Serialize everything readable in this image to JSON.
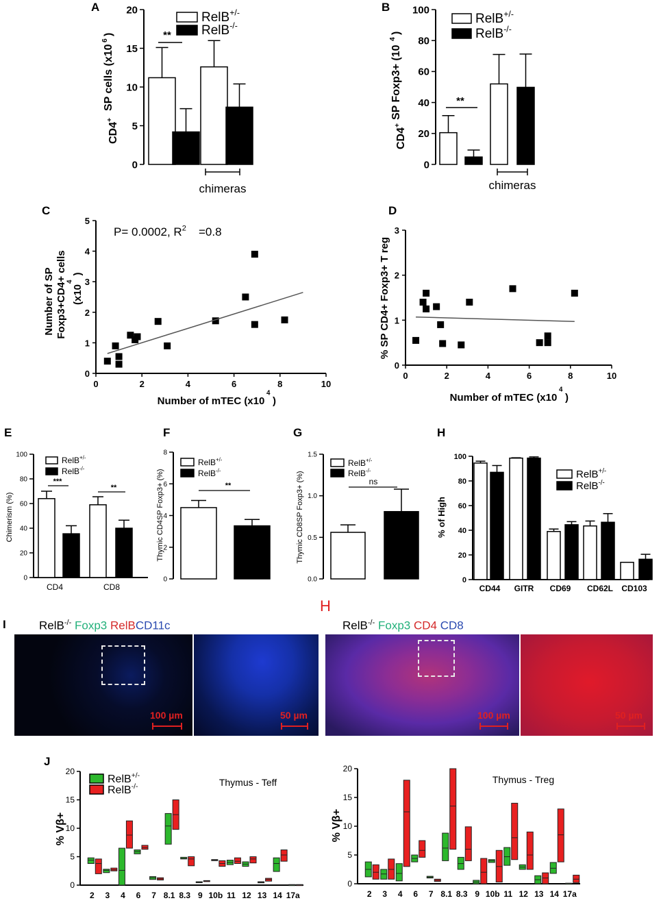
{
  "colors": {
    "teff_green": "#2db82d",
    "teff_red": "#e82020",
    "mono_black": "#000000",
    "mono_white": "#ffffff"
  },
  "panels": {
    "A": {
      "letter": "A"
    },
    "B": {
      "letter": "B"
    },
    "C": {
      "letter": "C"
    },
    "D": {
      "letter": "D"
    },
    "E": {
      "letter": "E"
    },
    "F": {
      "letter": "F"
    },
    "G": {
      "letter": "G"
    },
    "H": {
      "letter": "H"
    },
    "I": {
      "letter": "I"
    },
    "J": {
      "letter": "J"
    }
  },
  "imaging": {
    "left": {
      "genotype": "RelB",
      "sup": "-/-",
      "stains": [
        {
          "text": "Foxp3",
          "color": "#22b07a"
        },
        {
          "text": "RelB",
          "color": "#d42a2a"
        },
        {
          "text": "CD11c",
          "color": "#2a4ab0"
        }
      ],
      "scale_wide": "100 µm",
      "scale_zoom": "50 µm"
    },
    "right": {
      "header_mark": "H",
      "genotype": "RelB",
      "sup": "-/-",
      "stains": [
        {
          "text": "Foxp3",
          "color": "#22b07a"
        },
        {
          "text": "CD4",
          "color": "#d42a2a"
        },
        {
          "text": "CD8",
          "color": "#2a4ab0"
        }
      ],
      "scale_wide": "100 µm",
      "scale_zoom": "50 µm"
    }
  },
  "chart_data": [
    {
      "id": "A",
      "type": "bar",
      "ylabel": "CD4+ SP cells (x10^6)",
      "ylim": [
        0,
        20
      ],
      "yticks": [
        0,
        5,
        10,
        15,
        20
      ],
      "series": [
        {
          "name": "RelB+/-",
          "fill": "white",
          "values": [
            11.2,
            12.6
          ],
          "err": [
            3.9,
            3.4
          ]
        },
        {
          "name": "RelB-/-",
          "fill": "black",
          "values": [
            4.2,
            7.4
          ],
          "err": [
            3.0,
            3.0
          ]
        }
      ],
      "groups": [
        "",
        "chimeras"
      ],
      "annotations": [
        {
          "text": "**",
          "between": [
            0,
            0
          ]
        }
      ],
      "legend": "top-right"
    },
    {
      "id": "B",
      "type": "bar",
      "ylabel": "CD4+ SP Foxp3+ (10^4)",
      "ylim": [
        0,
        100
      ],
      "yticks": [
        0,
        20,
        40,
        60,
        80,
        100
      ],
      "series": [
        {
          "name": "RelB+/-",
          "fill": "white",
          "values": [
            20.5,
            52
          ],
          "err": [
            11,
            19
          ]
        },
        {
          "name": "RelB-/-",
          "fill": "black",
          "values": [
            4.8,
            49.8
          ],
          "err": [
            4.5,
            21.5
          ]
        }
      ],
      "groups": [
        "",
        "chimeras"
      ],
      "annotations": [
        {
          "text": "**"
        }
      ],
      "legend": "top-right"
    },
    {
      "id": "C",
      "type": "scatter",
      "xlabel": "Number of mTEC (x10^4)",
      "ylabel": "Number of SP Foxp3+CD4+ cells (x10^4)",
      "xlim": [
        0,
        10
      ],
      "ylim": [
        0,
        5
      ],
      "xticks": [
        0,
        2,
        4,
        6,
        8,
        10
      ],
      "yticks": [
        0,
        1,
        2,
        3,
        4,
        5
      ],
      "annotation": "P= 0.0002, R2=0.8",
      "points": [
        [
          0.5,
          0.4
        ],
        [
          0.85,
          0.9
        ],
        [
          1.0,
          0.55
        ],
        [
          1.0,
          0.3
        ],
        [
          1.5,
          1.25
        ],
        [
          1.7,
          1.1
        ],
        [
          1.8,
          1.2
        ],
        [
          2.7,
          1.7
        ],
        [
          3.1,
          0.9
        ],
        [
          5.2,
          1.72
        ],
        [
          6.5,
          2.5
        ],
        [
          6.9,
          3.9
        ],
        [
          6.9,
          1.6
        ],
        [
          8.2,
          1.75
        ]
      ],
      "fit": [
        [
          0.5,
          0.65
        ],
        [
          9.0,
          2.65
        ]
      ]
    },
    {
      "id": "D",
      "type": "scatter",
      "xlabel": "Number of mTEC (x10^4)",
      "ylabel": "% SP CD4+ Foxp3+ T reg",
      "xlim": [
        0,
        10
      ],
      "ylim": [
        0,
        3
      ],
      "xticks": [
        0,
        2,
        4,
        6,
        8,
        10
      ],
      "yticks": [
        0,
        1,
        2,
        3
      ],
      "points": [
        [
          0.5,
          0.55
        ],
        [
          0.85,
          1.4
        ],
        [
          1.0,
          1.6
        ],
        [
          1.0,
          1.25
        ],
        [
          1.5,
          1.3
        ],
        [
          1.7,
          0.9
        ],
        [
          1.8,
          0.48
        ],
        [
          2.7,
          0.45
        ],
        [
          3.1,
          1.4
        ],
        [
          5.2,
          1.7
        ],
        [
          6.5,
          0.5
        ],
        [
          6.9,
          0.65
        ],
        [
          6.9,
          0.5
        ],
        [
          8.2,
          1.6
        ]
      ],
      "fit": [
        [
          0.5,
          1.07
        ],
        [
          8.2,
          0.97
        ]
      ]
    },
    {
      "id": "E",
      "type": "bar",
      "ylabel": "Chimerism (%)",
      "ylim": [
        0,
        100
      ],
      "yticks": [
        0,
        20,
        40,
        60,
        80,
        100
      ],
      "categories": [
        "CD4",
        "CD8"
      ],
      "series": [
        {
          "name": "RelB+/-",
          "fill": "white",
          "values": [
            64,
            59
          ],
          "err": [
            6,
            6.5
          ]
        },
        {
          "name": "RelB-/-",
          "fill": "black",
          "values": [
            35.5,
            40
          ],
          "err": [
            6.5,
            6.5
          ]
        }
      ],
      "annotations": [
        {
          "text": "***"
        },
        {
          "text": "**"
        }
      ],
      "legend": "top-left"
    },
    {
      "id": "F",
      "type": "bar",
      "ylabel": "Thymic CD4SP Foxp3+ (%)",
      "ylim": [
        0,
        8
      ],
      "yticks": [
        0,
        2,
        4,
        6,
        8
      ],
      "series": [
        {
          "name": "RelB+/-",
          "fill": "white",
          "values": [
            4.5
          ],
          "err": [
            0.45
          ]
        },
        {
          "name": "RelB-/-",
          "fill": "black",
          "values": [
            3.35
          ],
          "err": [
            0.4
          ]
        }
      ],
      "annotations": [
        {
          "text": "**"
        }
      ],
      "legend": "top-left"
    },
    {
      "id": "G",
      "type": "bar",
      "ylabel": "Thymic CD8SP Foxp3+ (%)",
      "ylim": [
        0,
        1.5
      ],
      "yticks": [
        0.0,
        0.5,
        1.0,
        1.5
      ],
      "series": [
        {
          "name": "RelB+/-",
          "fill": "white",
          "values": [
            0.56
          ],
          "err": [
            0.09
          ]
        },
        {
          "name": "RelB-/-",
          "fill": "black",
          "values": [
            0.81
          ],
          "err": [
            0.27
          ]
        }
      ],
      "annotations": [
        {
          "text": "ns"
        }
      ],
      "legend": "top-left"
    },
    {
      "id": "H",
      "type": "bar",
      "ylabel": "% of High",
      "ylim": [
        0,
        100
      ],
      "yticks": [
        0,
        20,
        40,
        60,
        80,
        100
      ],
      "categories": [
        "CD44",
        "GITR",
        "CD69",
        "CD62L",
        "CD103"
      ],
      "series": [
        {
          "name": "RelB+/-",
          "fill": "white",
          "values": [
            94.5,
            98.5,
            39,
            43.5,
            14
          ],
          "err": [
            1.5,
            0.3,
            2,
            4,
            0
          ]
        },
        {
          "name": "RelB-/-",
          "fill": "black",
          "values": [
            87,
            98.5,
            44.5,
            46.5,
            16.5
          ],
          "err": [
            5.5,
            1,
            2.5,
            7,
            4
          ]
        }
      ],
      "legend": "right"
    },
    {
      "id": "J-Teff",
      "type": "bar",
      "title": "Thymus - Teff",
      "ylabel": "% Vβ+",
      "ylim": [
        0,
        20
      ],
      "yticks": [
        0,
        5,
        10,
        15,
        20
      ],
      "categories": [
        "2",
        "3",
        "4",
        "6",
        "7",
        "8.1",
        "8.3",
        "9",
        "10b",
        "11",
        "12",
        "13",
        "14",
        "17a"
      ],
      "series": [
        {
          "name": "RelB+/-",
          "fill": "#2db82d",
          "ranges": [
            [
              3.8,
              4.8
            ],
            [
              2.2,
              2.8
            ],
            [
              0,
              6.5
            ],
            [
              5.5,
              6.2
            ],
            [
              1.0,
              1.5
            ],
            [
              7.2,
              12.6
            ],
            [
              4.6,
              4.9
            ],
            [
              0.5,
              0.6
            ],
            [
              4.3,
              4.5
            ],
            [
              3.6,
              4.4
            ],
            [
              3.3,
              4.1
            ],
            [
              0.4,
              0.6
            ],
            [
              2.4,
              4.8
            ],
            [
              0,
              0.1
            ]
          ],
          "medians": [
            4.4,
            2.6,
            2.6,
            5.9,
            1.3,
            10.4,
            4.7,
            0.55,
            4.4,
            4.0,
            3.7,
            0.5,
            3.8,
            0.05
          ]
        },
        {
          "name": "RelB-/-",
          "fill": "#e82020",
          "ranges": [
            [
              2.0,
              4.6
            ],
            [
              2.5,
              3.0
            ],
            [
              6.5,
              11.3
            ],
            [
              6.3,
              7.0
            ],
            [
              0.9,
              1.3
            ],
            [
              9.8,
              15.0
            ],
            [
              3.4,
              5.0
            ],
            [
              0.7,
              0.8
            ],
            [
              3.3,
              4.3
            ],
            [
              3.8,
              4.8
            ],
            [
              3.9,
              5.0
            ],
            [
              0.7,
              1.2
            ],
            [
              4.2,
              6.2
            ],
            [
              0,
              0.1
            ]
          ],
          "medians": [
            3.8,
            2.7,
            8.8,
            6.6,
            1.1,
            12.4,
            4.6,
            0.75,
            3.8,
            4.2,
            4.6,
            1.0,
            5.3,
            0.05
          ]
        }
      ],
      "legend": "top-left"
    },
    {
      "id": "J-Treg",
      "type": "bar",
      "title": "Thymus - Treg",
      "ylabel": "% Vβ+",
      "ylim": [
        0,
        20
      ],
      "yticks": [
        0,
        5,
        10,
        15,
        20
      ],
      "categories": [
        "2",
        "3",
        "4",
        "6",
        "7",
        "8.1",
        "8.3",
        "9",
        "10b",
        "11",
        "12",
        "13",
        "14",
        "17a"
      ],
      "series": [
        {
          "name": "RelB+/-",
          "fill": "#2db82d",
          "ranges": [
            [
              1.2,
              3.8
            ],
            [
              0.8,
              2.5
            ],
            [
              0.5,
              3.5
            ],
            [
              3.8,
              5.0
            ],
            [
              1.0,
              1.3
            ],
            [
              4.0,
              8.8
            ],
            [
              2.5,
              4.6
            ],
            [
              0,
              0.6
            ],
            [
              3.7,
              4.2
            ],
            [
              3.2,
              6.3
            ],
            [
              2.5,
              3.3
            ],
            [
              0,
              1.4
            ],
            [
              1.8,
              3.7
            ],
            [
              0,
              0.1
            ]
          ],
          "medians": [
            2.5,
            1.7,
            1.8,
            4.4,
            1.15,
            6.2,
            3.5,
            0.3,
            4.0,
            4.7,
            2.9,
            0.7,
            2.7,
            0.05
          ]
        },
        {
          "name": "RelB-/-",
          "fill": "#e82020",
          "ranges": [
            [
              0.8,
              3.3
            ],
            [
              0.8,
              4.3
            ],
            [
              3.0,
              18.0
            ],
            [
              4.6,
              7.5
            ],
            [
              0.4,
              0.8
            ],
            [
              6.0,
              20.0
            ],
            [
              4.0,
              9.9
            ],
            [
              0,
              4.4
            ],
            [
              0.3,
              5.8
            ],
            [
              4.2,
              14.0
            ],
            [
              2.5,
              9.0
            ],
            [
              0,
              1.9
            ],
            [
              3.8,
              13.0
            ],
            [
              0.2,
              1.5
            ]
          ],
          "medians": [
            2.0,
            2.5,
            12.5,
            5.8,
            0.6,
            13.5,
            6.0,
            2.0,
            3.0,
            8.0,
            5.0,
            1.0,
            8.5,
            0.8
          ]
        }
      ],
      "legend": "none"
    }
  ]
}
